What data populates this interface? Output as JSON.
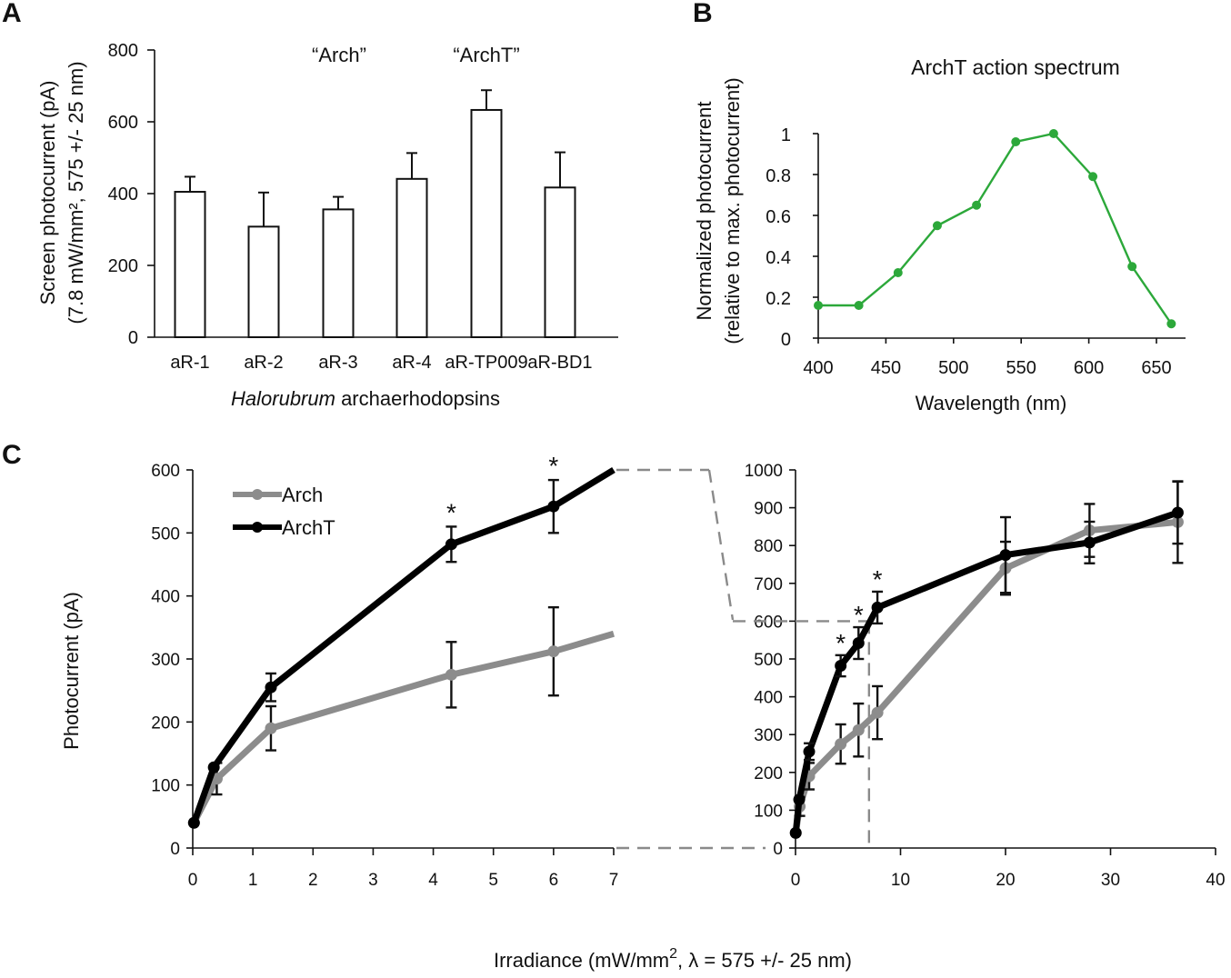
{
  "panels": {
    "A": "A",
    "B": "B",
    "C": "C"
  },
  "chart_data": [
    {
      "panel": "A",
      "type": "bar",
      "categories": [
        "aR-1",
        "aR-2",
        "aR-3",
        "aR-4",
        "aR-TP009",
        "aR-BD1"
      ],
      "values": [
        405,
        308,
        356,
        441,
        633,
        417
      ],
      "errors": [
        42,
        95,
        35,
        72,
        55,
        98
      ],
      "ylim": [
        0,
        800
      ],
      "yticks": [
        0,
        200,
        400,
        600,
        800
      ],
      "ylabel_line1": "Screen photocurrent (pA)",
      "ylabel_line2": "(7.8 mW/mm², 575 +/- 25 nm)",
      "xlabel_italic": "Halorubrum",
      "xlabel_rest": " archaerhodopsins",
      "annotations": [
        {
          "text": "“Arch”",
          "category": "aR-3"
        },
        {
          "text": "“ArchT”",
          "category": "aR-TP009"
        }
      ],
      "grid": false
    },
    {
      "panel": "B",
      "type": "line",
      "title": "ArchT action spectrum",
      "xlabel": "Wavelength (nm)",
      "ylabel_line1": "Normalized photocurrent",
      "ylabel_line2": "(relative to max. photocurrent)",
      "x": [
        400,
        430,
        459,
        488,
        517,
        546,
        574,
        603,
        632,
        661
      ],
      "values": [
        0.16,
        0.16,
        0.32,
        0.55,
        0.65,
        0.96,
        1.0,
        0.79,
        0.35,
        0.07
      ],
      "xlim": [
        400,
        670
      ],
      "xticks": [
        400,
        450,
        500,
        550,
        600,
        650
      ],
      "ylim": [
        0,
        1
      ],
      "yticks": [
        0,
        0.2,
        0.4,
        0.6,
        0.8,
        1
      ],
      "ytick_labels": [
        "0",
        "0.2",
        "0.4",
        "0.6",
        "0.8",
        "1"
      ],
      "color": "#2ca83a",
      "grid": false
    },
    {
      "panel": "C-left",
      "type": "line",
      "ylabel": "Photocurrent (pA)",
      "xlim": [
        0,
        7
      ],
      "xticks": [
        0,
        1,
        2,
        3,
        4,
        5,
        6,
        7
      ],
      "ylim": [
        0,
        600
      ],
      "yticks": [
        0,
        100,
        200,
        300,
        400,
        500,
        600
      ],
      "legend": "top-left",
      "series": [
        {
          "name": "Arch",
          "color": "#8c8c8c",
          "x": [
            0.02,
            0.4,
            1.3,
            4.3,
            6.0,
            7.0
          ],
          "values": [
            40,
            110,
            190,
            275,
            312,
            340
          ],
          "errors": [
            null,
            25,
            35,
            52,
            70,
            null
          ]
        },
        {
          "name": "ArchT",
          "color": "#000000",
          "x": [
            0.02,
            0.35,
            1.3,
            4.3,
            6.0,
            7.0
          ],
          "values": [
            40,
            128,
            255,
            482,
            542,
            600
          ],
          "errors": [
            null,
            null,
            22,
            28,
            42,
            null
          ]
        }
      ],
      "stars": [
        {
          "x": 4.3,
          "text": "*"
        },
        {
          "x": 6.0,
          "text": "*"
        }
      ],
      "grid": false
    },
    {
      "panel": "C-right",
      "type": "line",
      "xlim": [
        0,
        40
      ],
      "xticks": [
        0,
        10,
        20,
        30,
        40
      ],
      "ylim": [
        0,
        1000
      ],
      "yticks": [
        0,
        100,
        200,
        300,
        400,
        500,
        600,
        700,
        800,
        900,
        1000
      ],
      "series": [
        {
          "name": "Arch",
          "color": "#8c8c8c",
          "x": [
            0.02,
            0.4,
            1.3,
            4.3,
            6.0,
            7.8,
            20,
            28,
            36.4
          ],
          "values": [
            40,
            110,
            190,
            275,
            312,
            358,
            740,
            840,
            862
          ],
          "errors": [
            null,
            25,
            35,
            52,
            70,
            70,
            70,
            70,
            108
          ]
        },
        {
          "name": "ArchT",
          "color": "#000000",
          "x": [
            0.02,
            0.35,
            1.3,
            4.3,
            6.0,
            7.8,
            20,
            28,
            36.4
          ],
          "values": [
            40,
            128,
            255,
            482,
            542,
            636,
            775,
            808,
            887
          ],
          "errors": [
            null,
            null,
            22,
            28,
            42,
            42,
            100,
            55,
            82
          ]
        }
      ],
      "stars": [
        {
          "x": 4.3,
          "text": "*"
        },
        {
          "x": 6.0,
          "text": "*"
        },
        {
          "x": 7.8,
          "text": "*"
        }
      ],
      "zoom_box": {
        "x_max": 7,
        "y_max": 600
      },
      "grid": false
    }
  ],
  "shared_xlabel": {
    "prefix": "Irradiance  (mW/mm",
    "sup": "2",
    "suffix": ", λ = 575 +/- 25 nm)"
  }
}
